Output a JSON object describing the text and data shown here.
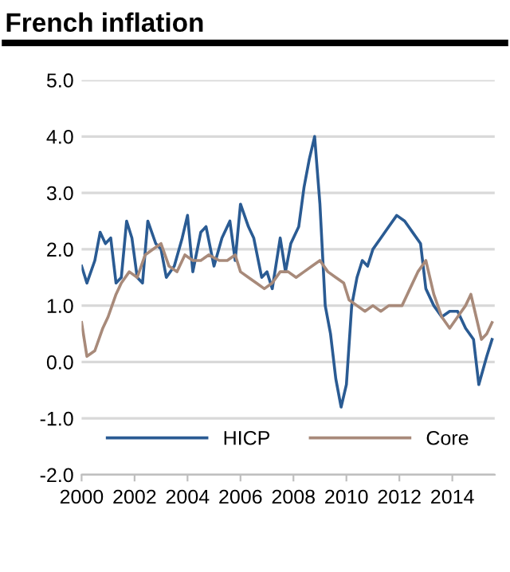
{
  "chart_data": {
    "type": "line",
    "title": "French inflation",
    "series": [
      {
        "name": "HICP",
        "color": "#2a5b93",
        "x": [
          2000.0,
          2000.2,
          2000.5,
          2000.7,
          2000.9,
          2001.1,
          2001.3,
          2001.5,
          2001.7,
          2001.9,
          2002.1,
          2002.3,
          2002.5,
          2002.8,
          2003.0,
          2003.2,
          2003.5,
          2003.8,
          2004.0,
          2004.2,
          2004.5,
          2004.7,
          2005.0,
          2005.3,
          2005.6,
          2005.8,
          2006.0,
          2006.3,
          2006.5,
          2006.8,
          2007.0,
          2007.2,
          2007.5,
          2007.7,
          2007.9,
          2008.2,
          2008.4,
          2008.6,
          2008.8,
          2009.0,
          2009.2,
          2009.4,
          2009.6,
          2009.8,
          2010.0,
          2010.2,
          2010.4,
          2010.6,
          2010.8,
          2011.0,
          2011.3,
          2011.6,
          2011.9,
          2012.2,
          2012.5,
          2012.8,
          2013.0,
          2013.3,
          2013.6,
          2013.9,
          2014.2,
          2014.5,
          2014.8,
          2015.0,
          2015.3,
          2015.5
        ],
        "values": [
          1.7,
          1.4,
          1.8,
          2.3,
          2.1,
          2.2,
          1.4,
          1.5,
          2.5,
          2.2,
          1.5,
          1.4,
          2.5,
          2.1,
          2.0,
          1.5,
          1.7,
          2.2,
          2.6,
          1.6,
          2.3,
          2.4,
          1.7,
          2.2,
          2.5,
          1.8,
          2.8,
          2.4,
          2.2,
          1.5,
          1.6,
          1.3,
          2.2,
          1.6,
          2.1,
          2.4,
          3.1,
          3.6,
          4.0,
          2.8,
          1.0,
          0.5,
          -0.3,
          -0.8,
          -0.4,
          1.0,
          1.5,
          1.8,
          1.7,
          2.0,
          2.2,
          2.4,
          2.6,
          2.5,
          2.3,
          2.1,
          1.3,
          1.0,
          0.8,
          0.9,
          0.9,
          0.6,
          0.4,
          -0.4,
          0.1,
          0.4
        ]
      },
      {
        "name": "Core",
        "color": "#a88a7a",
        "x": [
          2000.0,
          2000.2,
          2000.5,
          2000.8,
          2001.0,
          2001.3,
          2001.5,
          2001.8,
          2002.1,
          2002.4,
          2002.7,
          2003.0,
          2003.3,
          2003.6,
          2003.9,
          2004.2,
          2004.5,
          2004.8,
          2005.2,
          2005.5,
          2005.8,
          2006.0,
          2006.3,
          2006.6,
          2006.9,
          2007.2,
          2007.5,
          2007.8,
          2008.1,
          2008.4,
          2008.7,
          2009.0,
          2009.3,
          2009.6,
          2009.9,
          2010.1,
          2010.4,
          2010.7,
          2011.0,
          2011.3,
          2011.6,
          2011.9,
          2012.1,
          2012.4,
          2012.7,
          2013.0,
          2013.3,
          2013.6,
          2013.9,
          2014.2,
          2014.5,
          2014.7,
          2014.9,
          2015.1,
          2015.3,
          2015.5
        ],
        "values": [
          0.7,
          0.1,
          0.2,
          0.6,
          0.8,
          1.2,
          1.4,
          1.6,
          1.5,
          1.9,
          2.0,
          2.1,
          1.7,
          1.6,
          1.9,
          1.8,
          1.8,
          1.9,
          1.8,
          1.8,
          1.9,
          1.6,
          1.5,
          1.4,
          1.3,
          1.4,
          1.6,
          1.6,
          1.5,
          1.6,
          1.7,
          1.8,
          1.6,
          1.5,
          1.4,
          1.1,
          1.0,
          0.9,
          1.0,
          0.9,
          1.0,
          1.0,
          1.0,
          1.3,
          1.6,
          1.8,
          1.2,
          0.8,
          0.6,
          0.8,
          1.0,
          1.2,
          0.8,
          0.4,
          0.5,
          0.7
        ]
      }
    ],
    "xlim": [
      2000,
      2015.6
    ],
    "xticks": [
      2000,
      2002,
      2004,
      2006,
      2008,
      2010,
      2012,
      2014
    ],
    "ylim": [
      -2,
      5
    ],
    "yticks": [
      {
        "value": -2,
        "label": "-2.0"
      },
      {
        "value": -1,
        "label": "-1.0"
      },
      {
        "value": 0,
        "label": "0.0"
      },
      {
        "value": 1,
        "label": "1.0"
      },
      {
        "value": 2,
        "label": "2.0"
      },
      {
        "value": 3,
        "label": "3.0"
      },
      {
        "value": 4,
        "label": "4.0"
      },
      {
        "value": 5,
        "label": "5.0"
      }
    ],
    "grid": "y",
    "legend": "bottom",
    "line_style": "solid",
    "marker": "none"
  }
}
